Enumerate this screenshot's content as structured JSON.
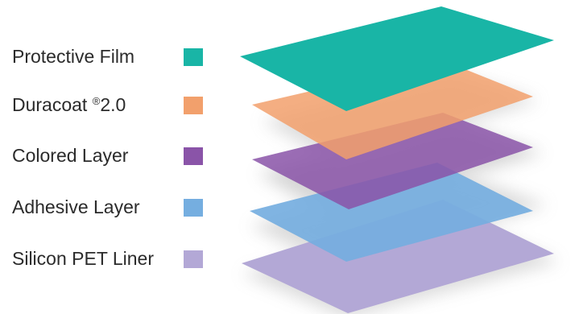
{
  "layers": [
    {
      "label": "Protective Film",
      "color": "#19b5a6"
    },
    {
      "label": "Duracoat",
      "suffix": "2.0",
      "mark": "®",
      "color": "#f2a06c"
    },
    {
      "label": "Colored Layer",
      "color": "#8a54a8"
    },
    {
      "label": "Adhesive Layer",
      "color": "#75aee0"
    },
    {
      "label": "Silicon PET Liner",
      "color": "#b3a8d6"
    }
  ]
}
